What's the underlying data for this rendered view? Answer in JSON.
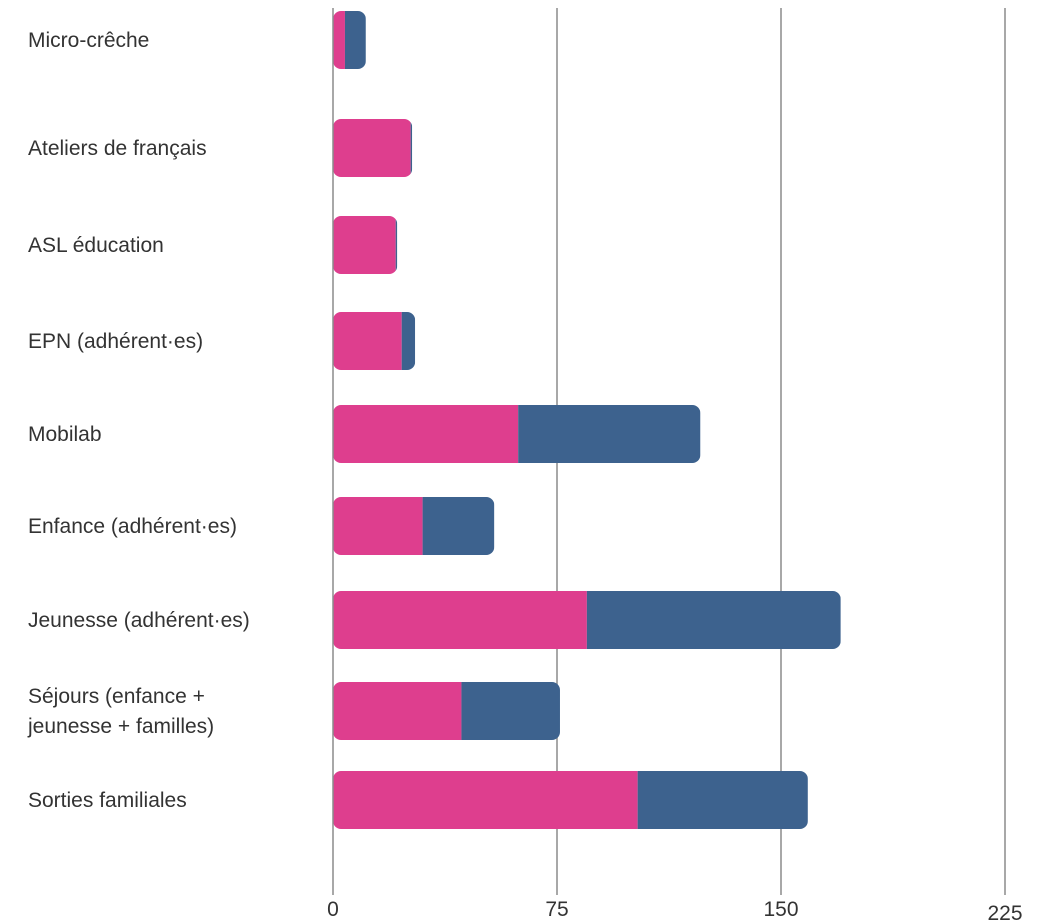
{
  "chart_data": {
    "type": "bar",
    "orientation": "horizontal",
    "stacked": true,
    "categories": [
      [
        "Micro-crêche"
      ],
      [
        "Ateliers de français"
      ],
      [
        "ASL éducation"
      ],
      [
        "EPN (adhérent·es)"
      ],
      [
        "Mobilab"
      ],
      [
        "Enfance (adhérent·es)"
      ],
      [
        "Jeunesse (adhérent·es)"
      ],
      [
        "Séjours (enfance +",
        "jeunesse + familles)"
      ],
      [
        "Sorties familiales"
      ]
    ],
    "series": [
      {
        "color": "#DE3E8E",
        "values": [
          4,
          26,
          21,
          23,
          62,
          30,
          85,
          43,
          102
        ]
      },
      {
        "color": "#3D628E",
        "values": [
          7,
          0.5,
          0.5,
          4.5,
          61,
          24,
          85,
          33,
          57
        ]
      }
    ],
    "xticks": [
      "0",
      "75",
      "150",
      "225"
    ],
    "xlim": [
      0,
      225
    ],
    "grid": true,
    "legend": "none"
  }
}
